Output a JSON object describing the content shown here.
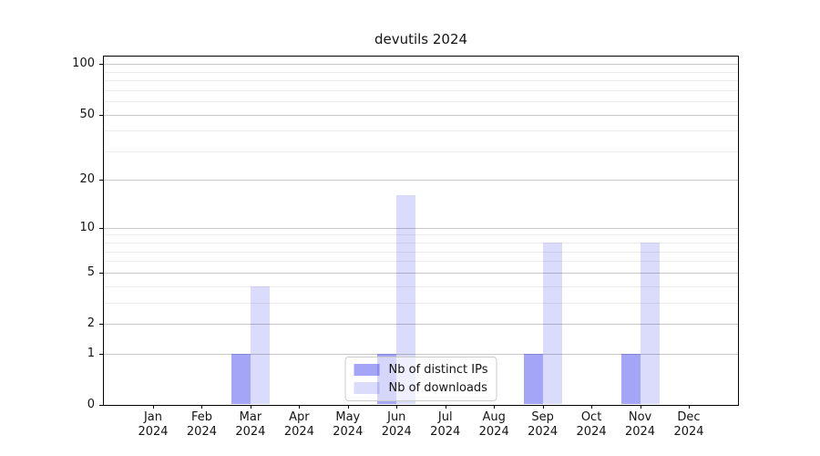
{
  "chart_data": {
    "type": "bar",
    "title": "devutils 2024",
    "xlabel": "",
    "ylabel": "",
    "categories": [
      "Jan 2024",
      "Feb 2024",
      "Mar 2024",
      "Apr 2024",
      "May 2024",
      "Jun 2024",
      "Jul 2024",
      "Aug 2024",
      "Sep 2024",
      "Oct 2024",
      "Nov 2024",
      "Dec 2024"
    ],
    "series": [
      {
        "name": "Nb of distinct IPs",
        "color": "rgba(30,30,235,0.40)",
        "values": [
          0,
          0,
          1,
          0,
          0,
          1,
          0,
          0,
          1,
          0,
          1,
          0
        ]
      },
      {
        "name": "Nb of downloads",
        "color": "rgba(30,30,235,0.16)",
        "values": [
          0,
          0,
          4,
          0,
          0,
          16,
          0,
          0,
          8,
          0,
          8,
          0
        ]
      }
    ],
    "yscale": "log1p",
    "ylim": [
      0,
      110.7
    ],
    "ytick_labels": [
      0,
      1,
      2,
      5,
      10,
      20,
      50,
      100
    ],
    "minor_grid_values": [
      3,
      4,
      6,
      7,
      8,
      9,
      30,
      40,
      60,
      70,
      80,
      90
    ],
    "grid": "horizontal",
    "legend_position": "lower center"
  },
  "colors": {
    "background": "#ffffff",
    "spine": "#000000",
    "major_grid": "#c8c8c8",
    "minor_grid": "#ececec",
    "text": "#141414",
    "legend_border": "#cccccc"
  }
}
